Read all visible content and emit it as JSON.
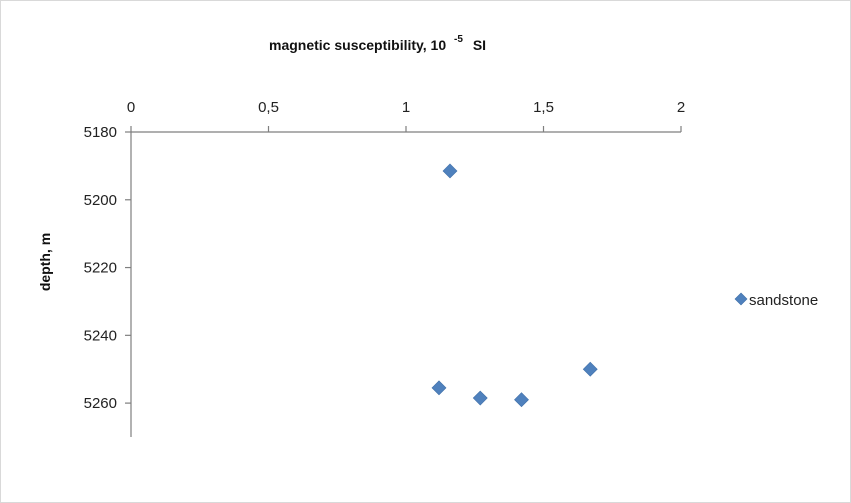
{
  "chart_data": {
    "type": "scatter",
    "title": "",
    "xlabel": "magnetic susceptibility, 10",
    "xlabel_superscript": "-5",
    "xlabel_unit": "SI",
    "ylabel": "depth, m",
    "xlim": [
      0,
      2
    ],
    "ylim": [
      5180,
      5270
    ],
    "y_inverted": true,
    "x_axis_position": "top",
    "x_ticks": [
      0,
      0.5,
      1,
      1.5,
      2
    ],
    "x_tick_labels": [
      "0",
      "0,5",
      "1",
      "1,5",
      "2"
    ],
    "y_ticks": [
      5180,
      5200,
      5220,
      5240,
      5260
    ],
    "y_tick_labels": [
      "5180",
      "5200",
      "5220",
      "5240",
      "5260"
    ],
    "grid": false,
    "legend_position": "right",
    "series": [
      {
        "name": "sandstone",
        "color": "#4f81bd",
        "marker": "diamond",
        "points": [
          {
            "x": 1.16,
            "y": 5191.5
          },
          {
            "x": 1.12,
            "y": 5255.5
          },
          {
            "x": 1.27,
            "y": 5258.5
          },
          {
            "x": 1.42,
            "y": 5259
          },
          {
            "x": 1.67,
            "y": 5250
          }
        ]
      }
    ]
  }
}
